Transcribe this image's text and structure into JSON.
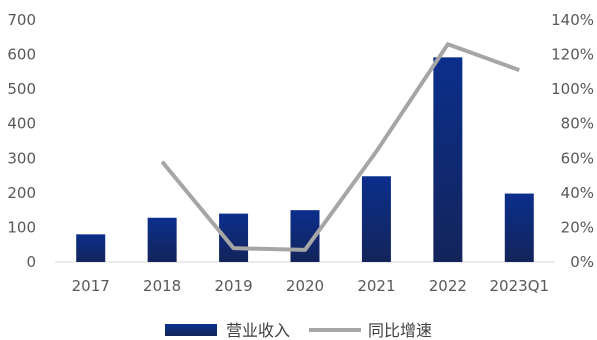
{
  "chart_data": {
    "type": "bar",
    "title": "",
    "categories": [
      "2017",
      "2018",
      "2019",
      "2020",
      "2021",
      "2022",
      "2023Q1"
    ],
    "series": [
      {
        "name": "营业收入",
        "type": "bar",
        "axis": "left",
        "values": [
          80,
          128,
          140,
          150,
          248,
          592,
          198
        ]
      },
      {
        "name": "同比增速",
        "type": "line",
        "axis": "right",
        "values": [
          null,
          58,
          8,
          7,
          64,
          126,
          111
        ]
      }
    ],
    "y_left": {
      "min": 0,
      "max": 700,
      "ticks": [
        "0",
        "100",
        "200",
        "300",
        "400",
        "500",
        "600",
        "700"
      ]
    },
    "y_right": {
      "min": 0,
      "max": 140,
      "ticks": [
        "0%",
        "20%",
        "40%",
        "60%",
        "80%",
        "100%",
        "120%",
        "140%"
      ]
    },
    "grid": false,
    "legend_position": "bottom",
    "colors": {
      "bar_top": "#0b2f8c",
      "bar_bottom": "#13245a",
      "line": "#a6a6a6",
      "axis": "#d9d9d9"
    }
  }
}
